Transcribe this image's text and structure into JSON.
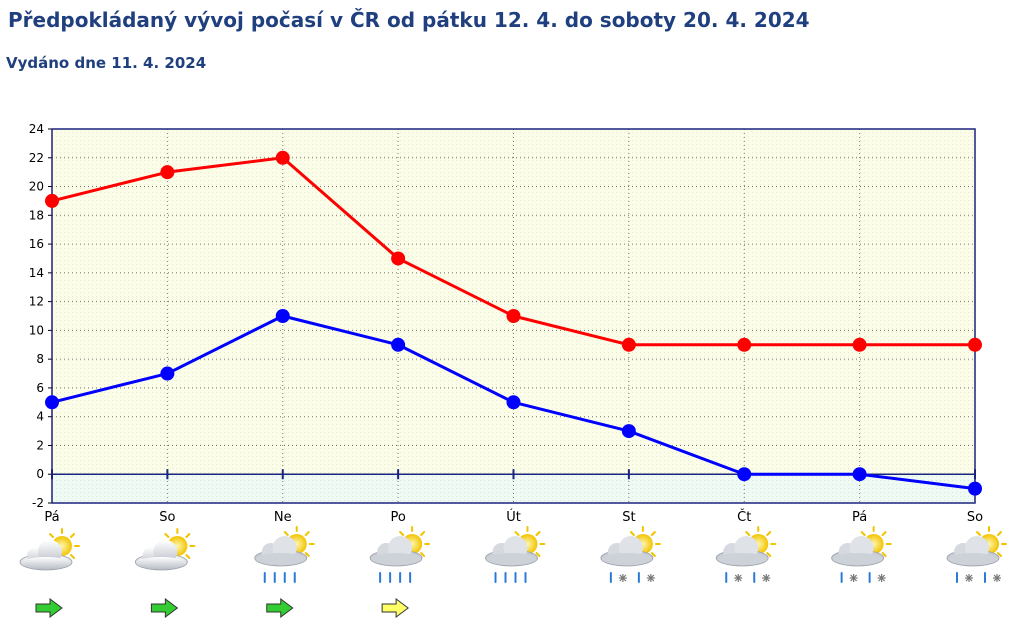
{
  "header": {
    "title": "Předpokládaný vývoj počasí v ČR od pátku 12. 4. do soboty 20. 4. 2024",
    "issued": "Vydáno dne 11. 4. 2024"
  },
  "chart_data": {
    "type": "line",
    "categories": [
      "Pá",
      "So",
      "Ne",
      "Po",
      "Út",
      "St",
      "Čt",
      "Pá",
      "So"
    ],
    "series": [
      {
        "values": [
          19,
          21,
          22,
          15,
          11,
          9,
          9,
          9,
          9
        ],
        "color": "#ff0000"
      },
      {
        "values": [
          5,
          7,
          11,
          9,
          5,
          3,
          0,
          0,
          -1
        ],
        "color": "#0000ff"
      }
    ],
    "ylim": [
      -2,
      24
    ],
    "yticks": [
      -2,
      0,
      2,
      4,
      6,
      8,
      10,
      12,
      14,
      16,
      18,
      20,
      22,
      24
    ],
    "grid": true,
    "weather_icons": [
      "sun-cloud-icon",
      "sun-cloud-icon",
      "rain-cloud-icon",
      "rain-cloud-icon",
      "rain-cloud-icon",
      "sleet-cloud-icon",
      "sleet-cloud-icon",
      "sleet-cloud-icon",
      "sleet-cloud-icon"
    ],
    "wind_arrows": [
      "green",
      "green",
      "green",
      "yellow",
      "",
      "",
      "",
      "",
      ""
    ]
  }
}
